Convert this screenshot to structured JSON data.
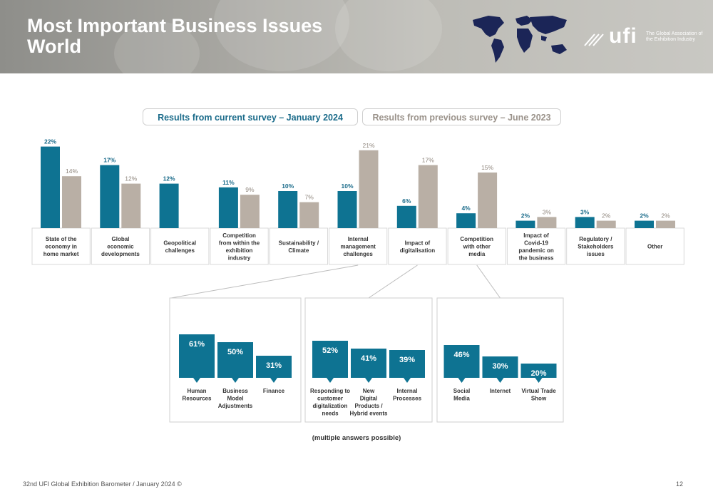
{
  "header": {
    "title_line1": "Most Important Business Issues",
    "title_line2": "World",
    "logo_word": "ufi",
    "logo_tagline": "The Global Association of the Exhibition Industry"
  },
  "legend": {
    "current": "Results from current survey – January 2024",
    "previous": "Results from previous survey – June 2023"
  },
  "colors": {
    "current": "#0e7392",
    "previous": "#b9afa5",
    "current_label": "#1a6b8a",
    "previous_label": "#8e857c"
  },
  "chart_data": [
    {
      "type": "bar",
      "categories": [
        [
          "State of the",
          "economy in",
          "home market"
        ],
        [
          "Global",
          "economic",
          "developments"
        ],
        [
          "Geopolitical",
          "challenges"
        ],
        [
          "Competition",
          "from within the",
          "exhibition",
          "industry"
        ],
        [
          "Sustainability /",
          "Climate"
        ],
        [
          "Internal",
          "management",
          "challenges"
        ],
        [
          "Impact of",
          "digitalisation"
        ],
        [
          "Competition",
          "with other",
          "media"
        ],
        [
          "Impact of",
          "Covid-19",
          "pandemic on",
          "the business"
        ],
        [
          "Regulatory /",
          "Stakeholders",
          "issues"
        ],
        [
          "Other"
        ]
      ],
      "series": [
        {
          "name": "Results from current survey – January 2024",
          "values": [
            22,
            17,
            12,
            11,
            10,
            10,
            6,
            4,
            2,
            3,
            2
          ]
        },
        {
          "name": "Results from previous survey – June 2023",
          "values": [
            14,
            12,
            null,
            9,
            7,
            21,
            17,
            15,
            3,
            2,
            2
          ]
        }
      ],
      "unit": "%"
    },
    {
      "type": "bar",
      "categories": [
        [
          "Human",
          "Resources"
        ],
        [
          "Business",
          "Model",
          "Adjustments"
        ],
        [
          "Finance"
        ]
      ],
      "values": [
        61,
        50,
        31
      ],
      "unit": "%"
    },
    {
      "type": "bar",
      "categories": [
        [
          "Responding to",
          "customer",
          "digitalization",
          "needs"
        ],
        [
          "New",
          "Digital",
          "Products /",
          "Hybrid events"
        ],
        [
          "Internal",
          "Processes"
        ]
      ],
      "values": [
        52,
        41,
        39
      ],
      "unit": "%"
    },
    {
      "type": "bar",
      "categories": [
        [
          "Social",
          "Media"
        ],
        [
          "Internet"
        ],
        [
          "Virtual Trade",
          "Show"
        ]
      ],
      "values": [
        46,
        30,
        20
      ],
      "unit": "%"
    }
  ],
  "note": "(multiple answers possible)",
  "footer": "32nd UFI Global Exhibition Barometer / January 2024 ©",
  "page_number": "12"
}
